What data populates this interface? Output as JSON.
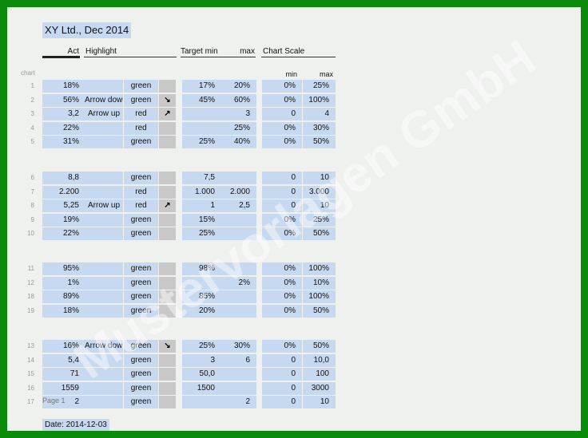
{
  "title": "XY Ltd., Dec 2014",
  "headers": {
    "act": "Act",
    "highlight": "Highlight",
    "target_min": "Target min",
    "max": "max",
    "chart_scale": "Chart Scale",
    "chart": "chart",
    "scale_min": "min",
    "scale_max": "max"
  },
  "groups": [
    [
      {
        "num": "1",
        "act": "18%",
        "hl": "",
        "color": "green",
        "arrow": "",
        "tmin": "17%",
        "tmax": "20%",
        "smin": "0%",
        "smax": "25%"
      },
      {
        "num": "2",
        "act": "56%",
        "hl": "Arrow down",
        "color": "green",
        "arrow": "↘",
        "tmin": "45%",
        "tmax": "60%",
        "smin": "0%",
        "smax": "100%"
      },
      {
        "num": "3",
        "act": "3,2",
        "hl": "Arrow up",
        "color": "red",
        "arrow": "↗",
        "tmin": "",
        "tmax": "3",
        "smin": "0",
        "smax": "4"
      },
      {
        "num": "4",
        "act": "22%",
        "hl": "",
        "color": "red",
        "arrow": "",
        "tmin": "",
        "tmax": "25%",
        "smin": "0%",
        "smax": "30%"
      },
      {
        "num": "5",
        "act": "31%",
        "hl": "",
        "color": "green",
        "arrow": "",
        "tmin": "25%",
        "tmax": "40%",
        "smin": "0%",
        "smax": "50%"
      }
    ],
    [
      {
        "num": "6",
        "act": "8,8",
        "hl": "",
        "color": "green",
        "arrow": "",
        "tmin": "7,5",
        "tmax": "",
        "smin": "0",
        "smax": "10"
      },
      {
        "num": "7",
        "act": "2.200",
        "hl": "",
        "color": "red",
        "arrow": "",
        "tmin": "1.000",
        "tmax": "2.000",
        "smin": "0",
        "smax": "3.000"
      },
      {
        "num": "8",
        "act": "5,25",
        "hl": "Arrow up",
        "color": "red",
        "arrow": "↗",
        "tmin": "1",
        "tmax": "2,5",
        "smin": "0",
        "smax": "10"
      },
      {
        "num": "9",
        "act": "19%",
        "hl": "",
        "color": "green",
        "arrow": "",
        "tmin": "15%",
        "tmax": "",
        "smin": "0%",
        "smax": "25%"
      },
      {
        "num": "10",
        "act": "22%",
        "hl": "",
        "color": "green",
        "arrow": "",
        "tmin": "25%",
        "tmax": "",
        "smin": "0%",
        "smax": "50%"
      }
    ],
    [
      {
        "num": "11",
        "act": "95%",
        "hl": "",
        "color": "green",
        "arrow": "",
        "tmin": "98%",
        "tmax": "",
        "smin": "0%",
        "smax": "100%"
      },
      {
        "num": "12",
        "act": "1%",
        "hl": "",
        "color": "green",
        "arrow": "",
        "tmin": "",
        "tmax": "2%",
        "smin": "0%",
        "smax": "10%"
      },
      {
        "num": "18",
        "act": "89%",
        "hl": "",
        "color": "green",
        "arrow": "",
        "tmin": "85%",
        "tmax": "",
        "smin": "0%",
        "smax": "100%"
      },
      {
        "num": "19",
        "act": "18%",
        "hl": "",
        "color": "green",
        "arrow": "",
        "tmin": "20%",
        "tmax": "",
        "smin": "0%",
        "smax": "50%"
      }
    ],
    [
      {
        "num": "13",
        "act": "16%",
        "hl": "Arrow down",
        "color": "green",
        "arrow": "↘",
        "tmin": "25%",
        "tmax": "30%",
        "smin": "0%",
        "smax": "50%"
      },
      {
        "num": "14",
        "act": "5,4",
        "hl": "",
        "color": "green",
        "arrow": "",
        "tmin": "3",
        "tmax": "6",
        "smin": "0",
        "smax": "10,0"
      },
      {
        "num": "15",
        "act": "71",
        "hl": "",
        "color": "green",
        "arrow": "",
        "tmin": "50,0",
        "tmax": "",
        "smin": "0",
        "smax": "100"
      },
      {
        "num": "16",
        "act": "1559",
        "hl": "",
        "color": "green",
        "arrow": "",
        "tmin": "1500",
        "tmax": "",
        "smin": "0",
        "smax": "3000"
      },
      {
        "num": "17",
        "act": "2",
        "hl": "",
        "color": "green",
        "arrow": "",
        "tmin": "",
        "tmax": "2",
        "smin": "0",
        "smax": "10"
      }
    ]
  ],
  "page_label": "Page 1",
  "date": "Date: 2014-12-03"
}
